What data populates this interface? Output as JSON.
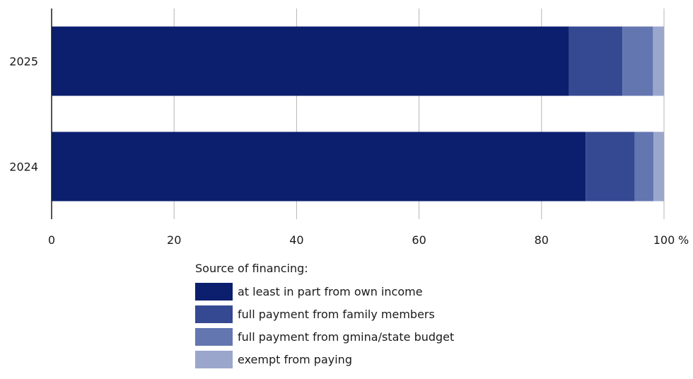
{
  "chart_data": {
    "type": "bar",
    "orientation": "horizontal",
    "stacked": true,
    "categories": [
      "2025",
      "2024"
    ],
    "series": [
      {
        "name": "at least in part from own income",
        "values": [
          84.5,
          87.2
        ],
        "color": "#0b1f6e"
      },
      {
        "name": "full payment from family members",
        "values": [
          8.7,
          8.0
        ],
        "color": "#354993"
      },
      {
        "name": "full payment from gmina/state budget",
        "values": [
          5.0,
          3.1
        ],
        "color": "#6376b0"
      },
      {
        "name": "exempt from paying",
        "values": [
          1.8,
          1.7
        ],
        "color": "#9aa6cc"
      }
    ],
    "xlim": [
      0,
      100
    ],
    "x_ticks": [
      "0",
      "20",
      "40",
      "60",
      "80",
      "100"
    ],
    "x_unit": "%",
    "grid": true,
    "legend_title": "Source of financing:",
    "legend_position": "bottom"
  }
}
